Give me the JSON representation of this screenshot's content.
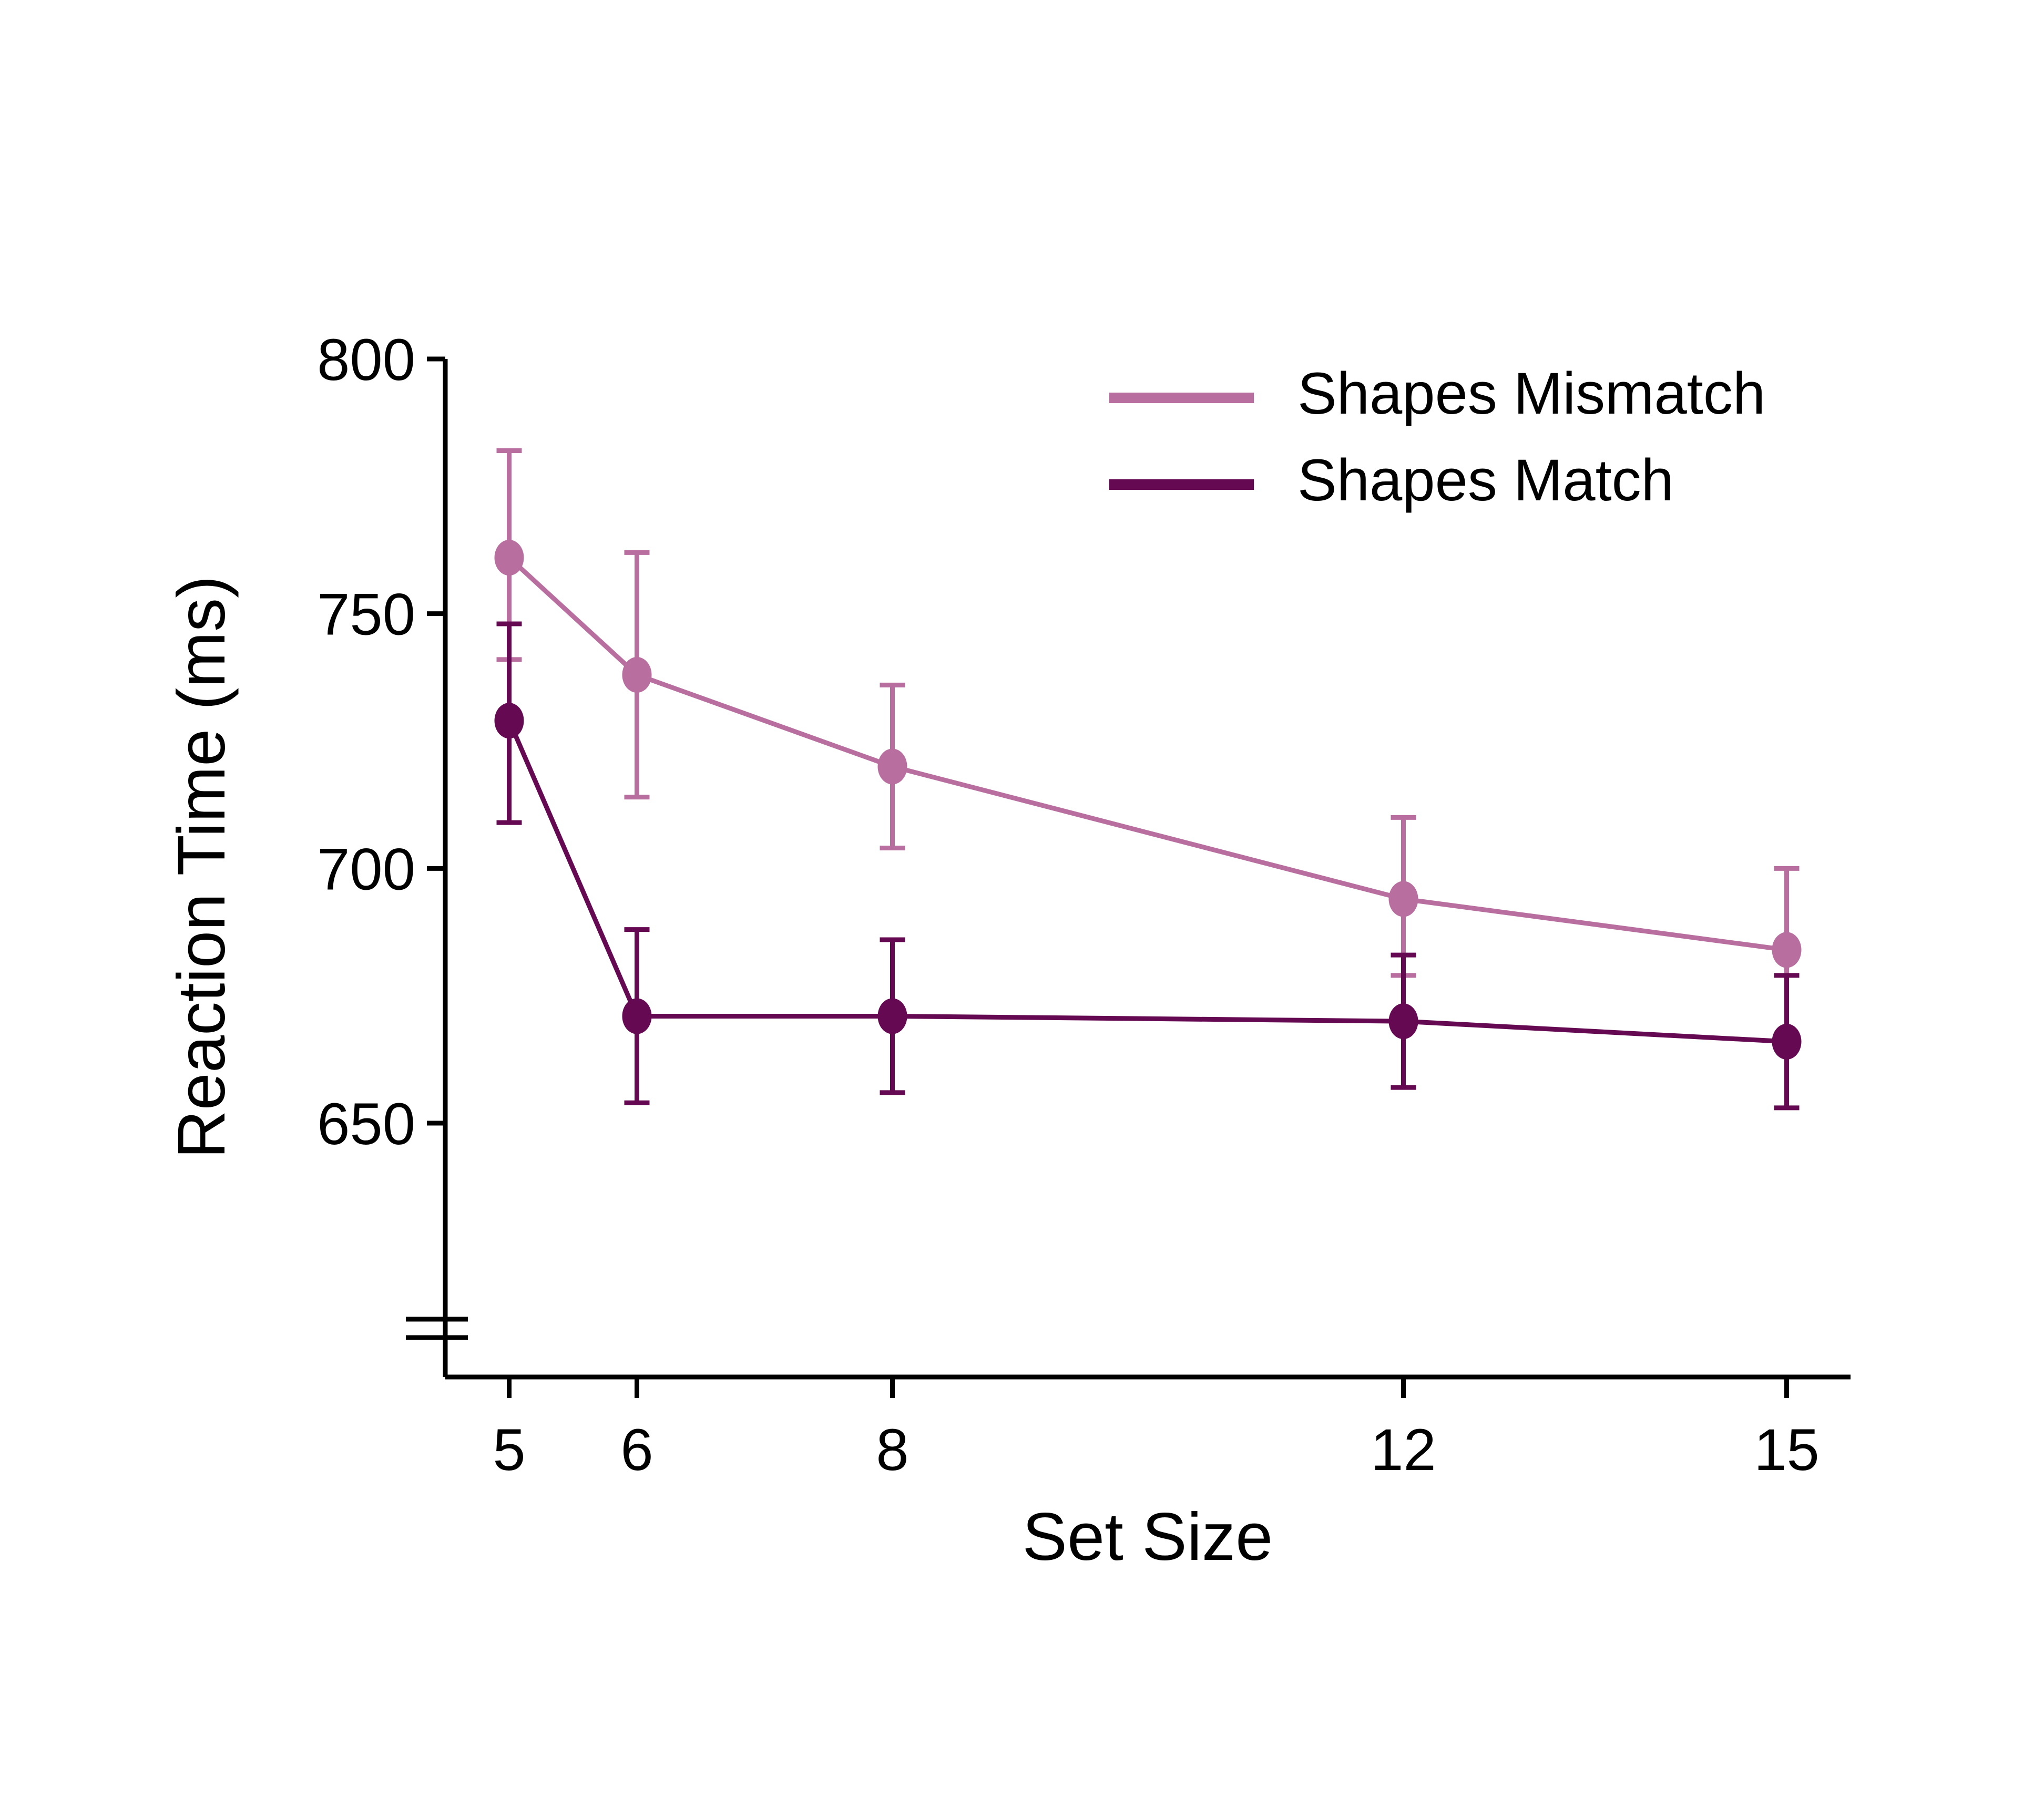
{
  "chart_data": {
    "type": "line",
    "title": "",
    "xlabel": "Set Size",
    "ylabel": "Reaction Time (ms)",
    "x": [
      5,
      6,
      8,
      12,
      15
    ],
    "xticks": [
      "5",
      "6",
      "8",
      "12",
      "15"
    ],
    "yticks": [
      "650",
      "700",
      "750",
      "800"
    ],
    "ylim": [
      600,
      800
    ],
    "y_axis_break": true,
    "legend_position": "top-right",
    "grid": false,
    "series": [
      {
        "name": "Shapes Mismatch",
        "color": "#B86FA0",
        "values": [
          761,
          738,
          720,
          694,
          684
        ],
        "err_low": [
          741,
          714,
          704,
          679,
          667
        ],
        "err_high": [
          782,
          762,
          736,
          710,
          700
        ]
      },
      {
        "name": "Shapes Match",
        "color": "#650A52",
        "values": [
          729,
          671,
          671,
          670,
          666
        ],
        "err_low": [
          709,
          654,
          656,
          657,
          653
        ],
        "err_high": [
          748,
          688,
          686,
          683,
          679
        ]
      }
    ]
  }
}
